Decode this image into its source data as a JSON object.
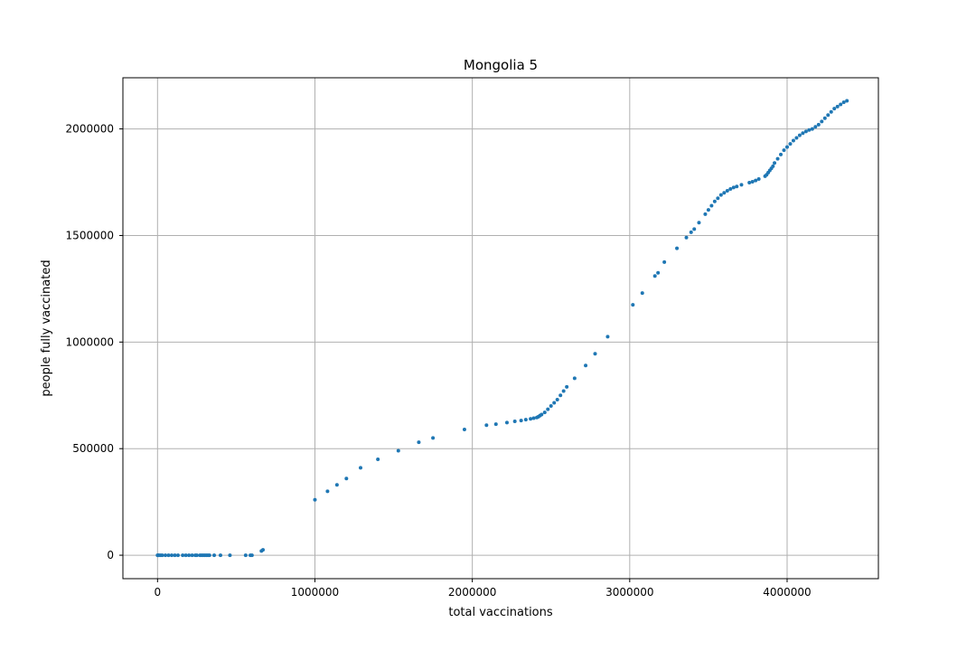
{
  "chart_data": {
    "type": "scatter",
    "title": "Mongolia 5",
    "xlabel": "total vaccinations",
    "ylabel": "people fully vaccinated",
    "xlim": [
      -220000,
      4580000
    ],
    "ylim": [
      -110000,
      2240000
    ],
    "xticks": [
      0,
      1000000,
      2000000,
      3000000,
      4000000
    ],
    "yticks": [
      0,
      500000,
      1000000,
      1500000,
      2000000
    ],
    "grid": true,
    "marker_color": "#1f77b4",
    "series": [
      {
        "x": [
          0,
          5000,
          10000,
          20000,
          30000,
          50000,
          70000,
          90000,
          110000,
          130000,
          160000,
          180000,
          200000,
          220000,
          240000,
          250000,
          270000,
          280000,
          290000,
          300000,
          310000,
          320000,
          330000,
          360000,
          400000,
          460000,
          560000,
          590000,
          600000,
          660000,
          670000,
          1000000,
          1080000,
          1140000,
          1200000,
          1290000,
          1400000,
          1530000,
          1660000,
          1750000,
          1950000,
          2090000,
          2150000,
          2220000,
          2270000,
          2310000,
          2340000,
          2370000,
          2390000,
          2410000,
          2420000,
          2430000,
          2440000,
          2460000,
          2480000,
          2500000,
          2520000,
          2540000,
          2560000,
          2580000,
          2600000,
          2650000,
          2720000,
          2780000,
          2860000,
          3020000,
          3080000,
          3160000,
          3180000,
          3220000,
          3300000,
          3360000,
          3390000,
          3410000,
          3440000,
          3480000,
          3500000,
          3520000,
          3540000,
          3560000,
          3580000,
          3600000,
          3620000,
          3640000,
          3660000,
          3680000,
          3710000,
          3760000,
          3780000,
          3800000,
          3820000,
          3860000,
          3870000,
          3880000,
          3890000,
          3900000,
          3910000,
          3920000,
          3940000,
          3960000,
          3980000,
          4000000,
          4020000,
          4040000,
          4060000,
          4080000,
          4100000,
          4120000,
          4140000,
          4160000,
          4180000,
          4200000,
          4220000,
          4240000,
          4260000,
          4280000,
          4300000,
          4320000,
          4340000,
          4360000,
          4380000
        ],
        "y": [
          0,
          0,
          0,
          0,
          0,
          0,
          0,
          0,
          0,
          0,
          0,
          0,
          0,
          0,
          0,
          0,
          0,
          0,
          0,
          0,
          0,
          0,
          0,
          0,
          0,
          0,
          0,
          0,
          0,
          20000,
          25000,
          260000,
          300000,
          330000,
          360000,
          410000,
          450000,
          490000,
          530000,
          550000,
          590000,
          610000,
          615000,
          622000,
          628000,
          632000,
          636000,
          640000,
          643000,
          646000,
          650000,
          655000,
          660000,
          670000,
          685000,
          700000,
          715000,
          730000,
          750000,
          770000,
          790000,
          830000,
          890000,
          945000,
          1025000,
          1175000,
          1230000,
          1310000,
          1325000,
          1375000,
          1440000,
          1490000,
          1515000,
          1530000,
          1560000,
          1600000,
          1620000,
          1640000,
          1660000,
          1675000,
          1690000,
          1700000,
          1710000,
          1718000,
          1725000,
          1730000,
          1738000,
          1748000,
          1752000,
          1758000,
          1765000,
          1778000,
          1785000,
          1795000,
          1805000,
          1815000,
          1825000,
          1840000,
          1860000,
          1880000,
          1900000,
          1915000,
          1930000,
          1945000,
          1958000,
          1970000,
          1980000,
          1988000,
          1995000,
          2000000,
          2010000,
          2020000,
          2035000,
          2050000,
          2065000,
          2080000,
          2095000,
          2105000,
          2115000,
          2125000,
          2132000
        ]
      }
    ]
  }
}
